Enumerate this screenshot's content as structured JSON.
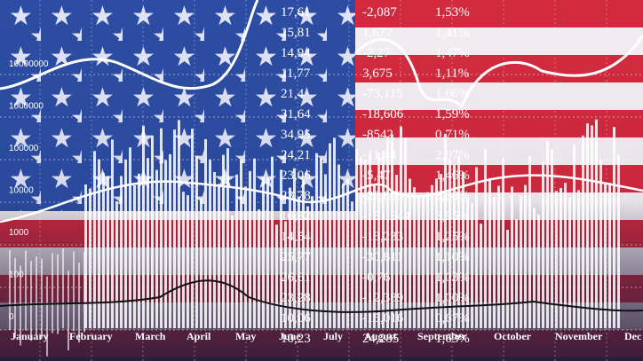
{
  "axis_labels": [
    "10000000",
    "1000000",
    "100000",
    "10000",
    "1000",
    "100",
    "0"
  ],
  "months": [
    "January",
    "February",
    "March",
    "April",
    "May",
    "June",
    "July",
    "August",
    "September",
    "October",
    "November",
    "Dec"
  ],
  "table": {
    "rows": [
      [
        "17,61",
        "-2,087",
        "1,53%"
      ],
      [
        "15,81",
        "1,677",
        "1,41%"
      ],
      [
        "14,94",
        "-2,27",
        "1,47%"
      ],
      [
        "11,77",
        "3,675",
        "1,11%"
      ],
      [
        "21,4",
        "-73,115",
        "1,66%"
      ],
      [
        "31,64",
        "-18,606",
        "1,59%"
      ],
      [
        "34,95",
        "-8542",
        "0,71%"
      ],
      [
        "24,21",
        "-11,44",
        "2,07%"
      ],
      [
        "23,06",
        "-5,47",
        "1,46%"
      ],
      [
        "23,78",
        "-20,853",
        "3,58%"
      ],
      [
        "16,82",
        "-151,544",
        "3,95%"
      ],
      [
        "14,54",
        "-13,233",
        "1,25%"
      ],
      [
        "25,77",
        "-30,811",
        "1,10%"
      ],
      [
        "26,61",
        "-0,76",
        "1,03%"
      ],
      [
        "23,28",
        "-12,389",
        "1,00%"
      ],
      [
        "10,06",
        "-15,016",
        "0,67%"
      ],
      [
        "10,23",
        "24,285",
        "1,63%"
      ]
    ]
  }
}
